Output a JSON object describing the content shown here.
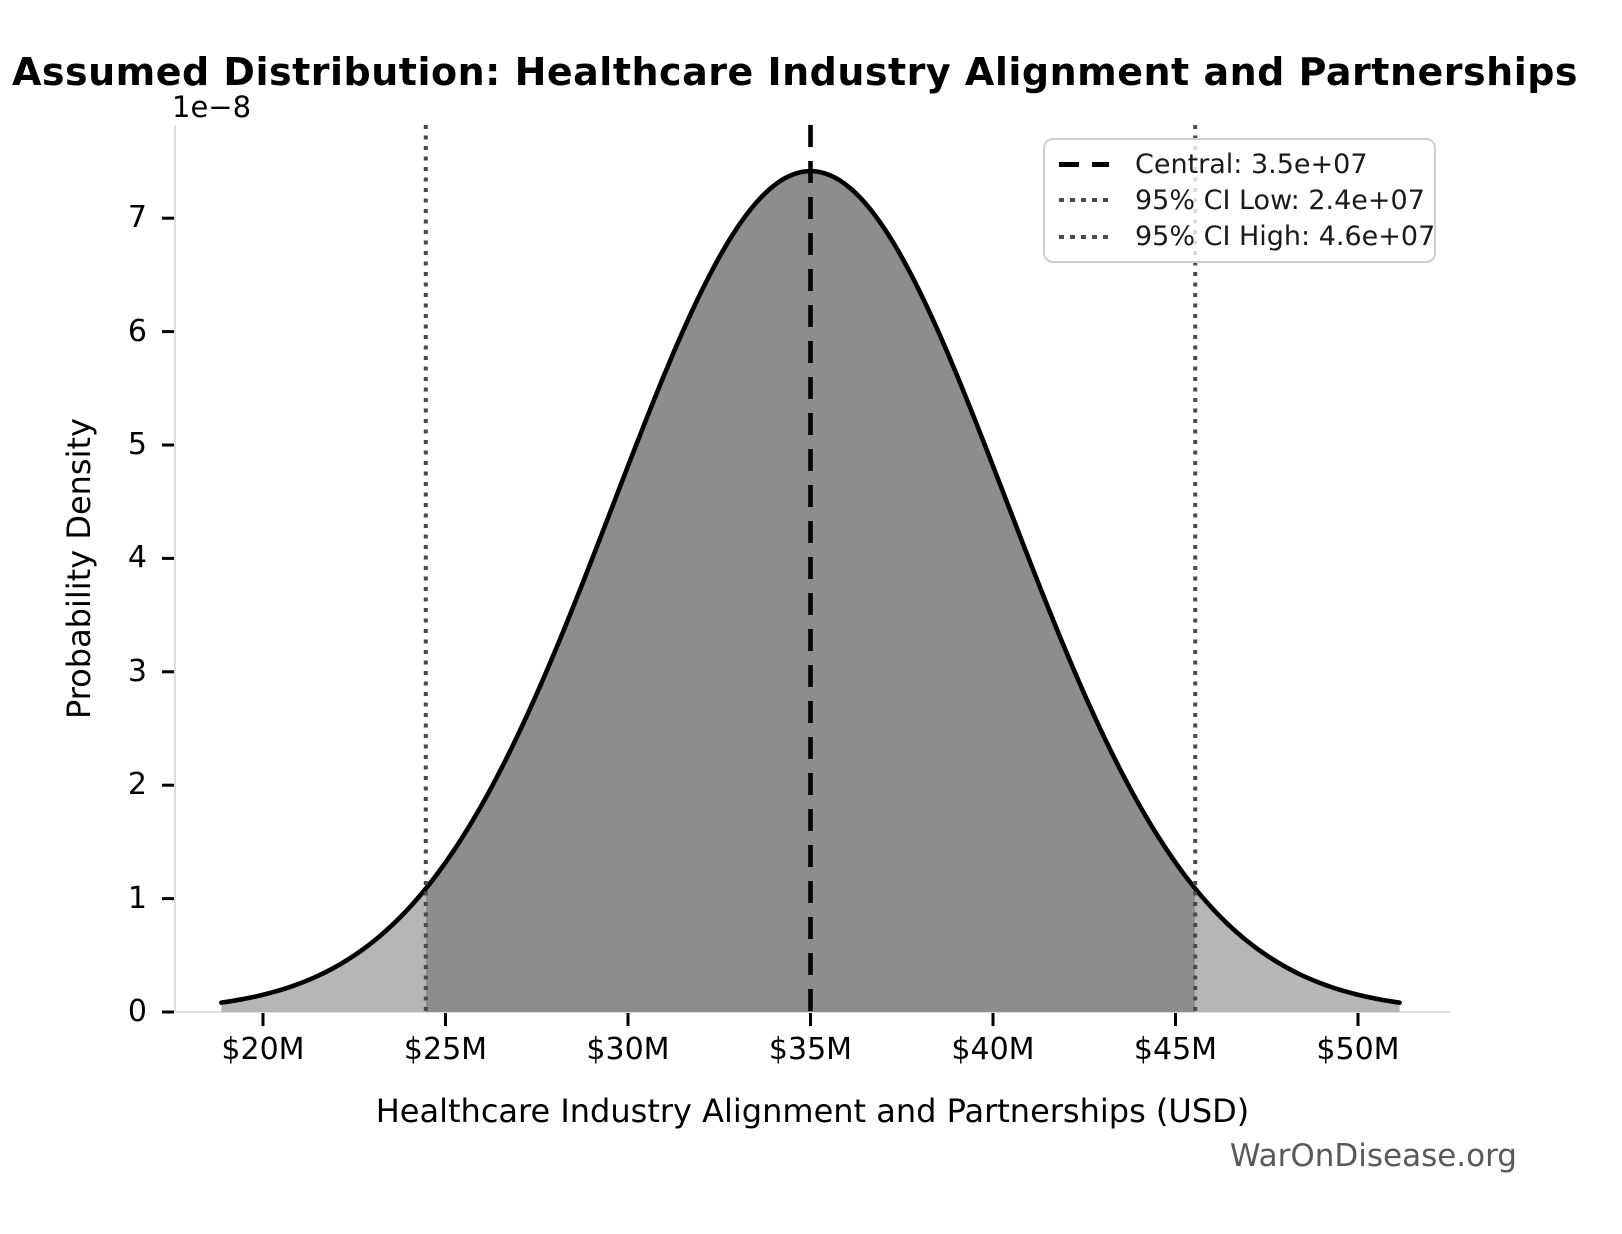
{
  "title": "Assumed Distribution: Healthcare Industry Alignment and Partnerships",
  "watermark": "WarOnDisease.org",
  "axes": {
    "y_label": "Probability Density",
    "x_label": "Healthcare Industry Alignment and Partnerships (USD)",
    "y_offset_label": "1e−8"
  },
  "legend": {
    "items": [
      {
        "label": "Central: 3.5e+07",
        "style": "dashed",
        "color": "#000000"
      },
      {
        "label": "95% CI Low: 2.4e+07",
        "style": "dotted",
        "color": "#4a4a4a"
      },
      {
        "label": "95% CI High: 4.6e+07",
        "style": "dotted",
        "color": "#4a4a4a"
      }
    ]
  },
  "chart_data": {
    "type": "area",
    "subtype": "normal-distribution-pdf",
    "title": "Assumed Distribution: Healthcare Industry Alignment and Partnerships",
    "xlabel": "Healthcare Industry Alignment and Partnerships (USD)",
    "ylabel": "Probability Density",
    "y_scale_factor": 1e-08,
    "y_scale_factor_label": "1e−8",
    "central_value": 35000000,
    "sigma": 5380000,
    "ci_level": "95%",
    "ci_low": 24460000,
    "ci_high": 45540000,
    "peak_density": 7.4e-08,
    "curve_x_range": [
      18860000,
      51140000
    ],
    "x_ticks": [
      {
        "value": 20000000,
        "label": "$20M"
      },
      {
        "value": 25000000,
        "label": "$25M"
      },
      {
        "value": 30000000,
        "label": "$30M"
      },
      {
        "value": 35000000,
        "label": "$35M"
      },
      {
        "value": 40000000,
        "label": "$40M"
      },
      {
        "value": 45000000,
        "label": "$45M"
      },
      {
        "value": 50000000,
        "label": "$50M"
      }
    ],
    "y_ticks": [
      {
        "value": 0,
        "label": "0"
      },
      {
        "value": 1,
        "label": "1"
      },
      {
        "value": 2,
        "label": "2"
      },
      {
        "value": 3,
        "label": "3"
      },
      {
        "value": 4,
        "label": "4"
      },
      {
        "value": 5,
        "label": "5"
      },
      {
        "value": 6,
        "label": "6"
      },
      {
        "value": 7,
        "label": "7"
      }
    ],
    "grid": false,
    "legend_position": "upper right",
    "colors": {
      "curve": "#000000",
      "fill_central": "#8d8d8d",
      "fill_tail": "#b6b6b6",
      "central_line": "#000000",
      "ci_line": "#4a4a4a",
      "spine": "#dddddd",
      "tick": "#000000",
      "watermark": "#595959"
    }
  }
}
